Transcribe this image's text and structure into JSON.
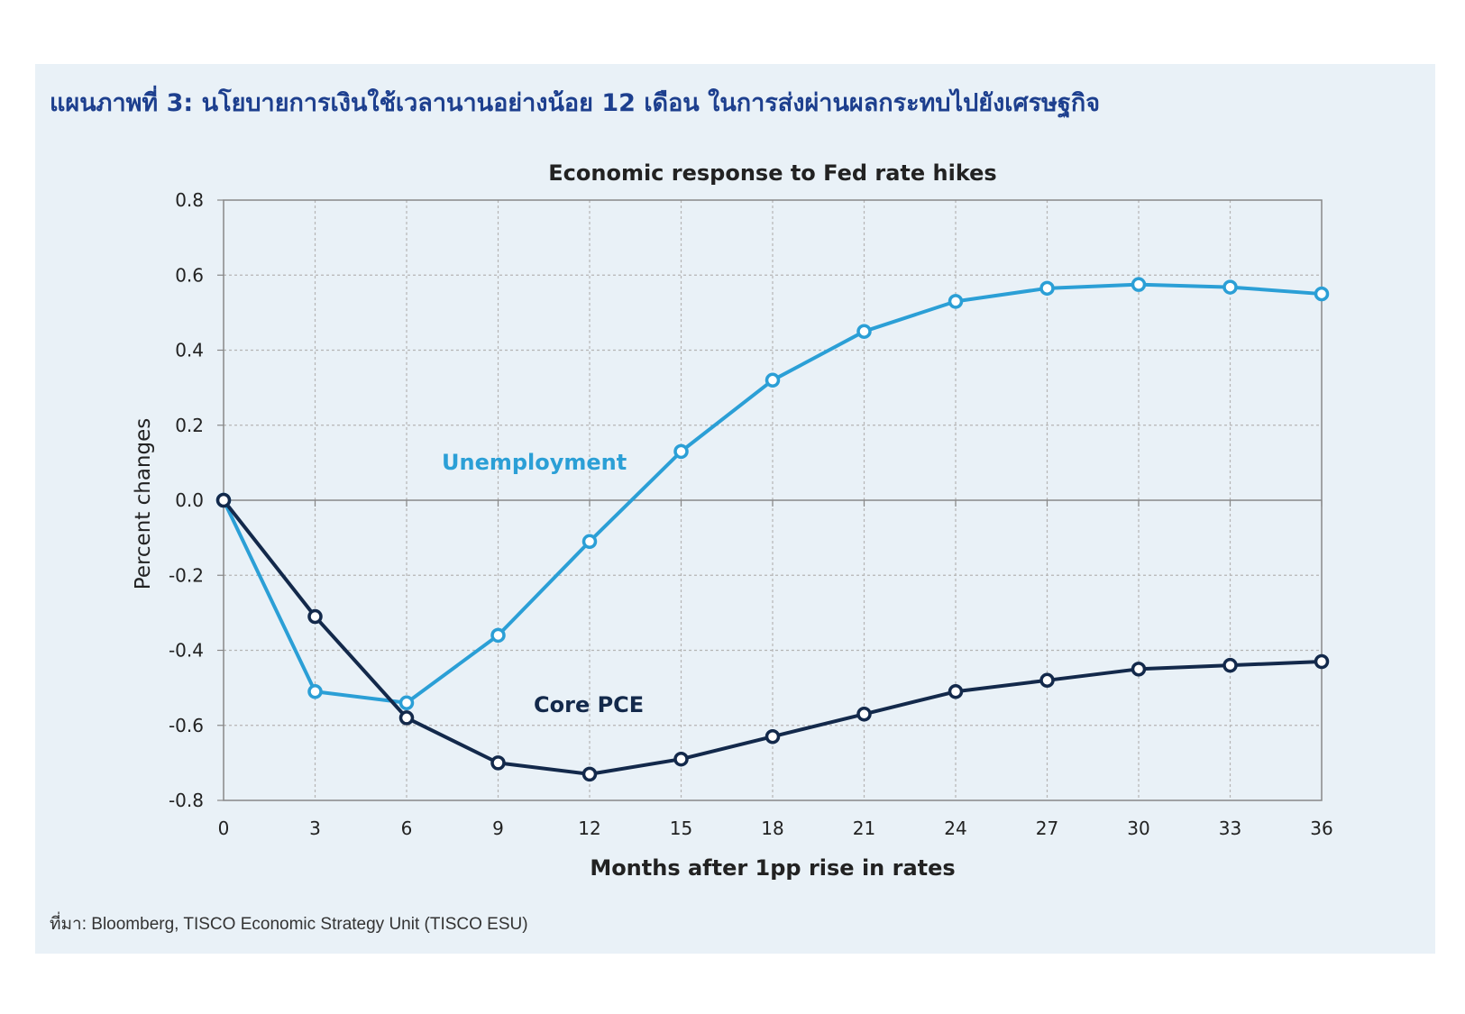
{
  "figure": {
    "title": "แผนภาพที่ 3: นโยบายการเงินใช้เวลานานอย่างน้อย 12 เดือน ในการส่งผ่านผลกระทบไปยังเศรษฐกิจ",
    "source": "ที่มา: Bloomberg, TISCO Economic Strategy Unit (TISCO ESU)"
  },
  "colors": {
    "panel_bg": "#e9f1f7",
    "title": "#1d3f8e",
    "unemployment": "#2b9fd6",
    "core_pce": "#13294b",
    "grid": "#b5b5b5",
    "axis": "#888888"
  },
  "chart_data": {
    "type": "line",
    "title": "Economic response to Fed rate hikes",
    "xlabel": "Months after 1pp rise in rates",
    "ylabel": "Percent changes",
    "x": [
      0,
      3,
      6,
      9,
      12,
      15,
      18,
      21,
      24,
      27,
      30,
      33,
      36
    ],
    "x_ticks": [
      "0",
      "3",
      "6",
      "9",
      "12",
      "15",
      "18",
      "21",
      "24",
      "27",
      "30",
      "33",
      "36"
    ],
    "y_ticks": [
      "0.8",
      "0.6",
      "0.4",
      "0.2",
      "0.0",
      "-0.2",
      "-0.4",
      "-0.6",
      "-0.8"
    ],
    "xlim": [
      0,
      36
    ],
    "ylim": [
      -0.8,
      0.8
    ],
    "grid": true,
    "series": [
      {
        "name": "Unemployment",
        "values": [
          0.0,
          -0.51,
          -0.54,
          -0.36,
          -0.11,
          0.13,
          0.32,
          0.45,
          0.53,
          0.565,
          0.575,
          0.568,
          0.55
        ]
      },
      {
        "name": "Core PCE",
        "values": [
          0.0,
          -0.31,
          -0.58,
          -0.7,
          -0.73,
          -0.69,
          -0.63,
          -0.57,
          -0.51,
          -0.48,
          -0.45,
          -0.44,
          -0.43
        ]
      }
    ]
  }
}
